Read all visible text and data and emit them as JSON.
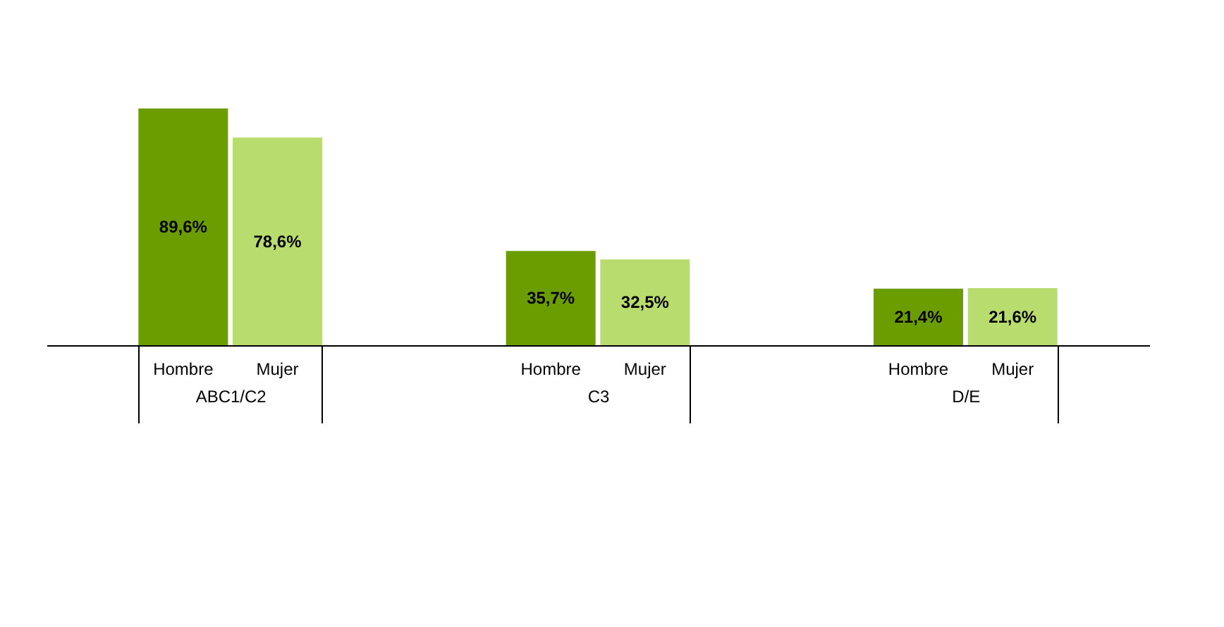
{
  "chart_data": {
    "type": "bar",
    "categories": [
      "ABC1/C2",
      "C3",
      "D/E"
    ],
    "series": [
      {
        "name": "Hombre",
        "color": "#6b9c00",
        "values": [
          89.6,
          35.7,
          21.4
        ],
        "value_labels": [
          "89,6%",
          "35,7%",
          "21,4%"
        ]
      },
      {
        "name": "Mujer",
        "color": "#b9dc6e",
        "values": [
          78.6,
          32.5,
          21.6
        ],
        "value_labels": [
          "78,6%",
          "32,5%",
          "21,6%"
        ]
      }
    ],
    "legend": false
  }
}
